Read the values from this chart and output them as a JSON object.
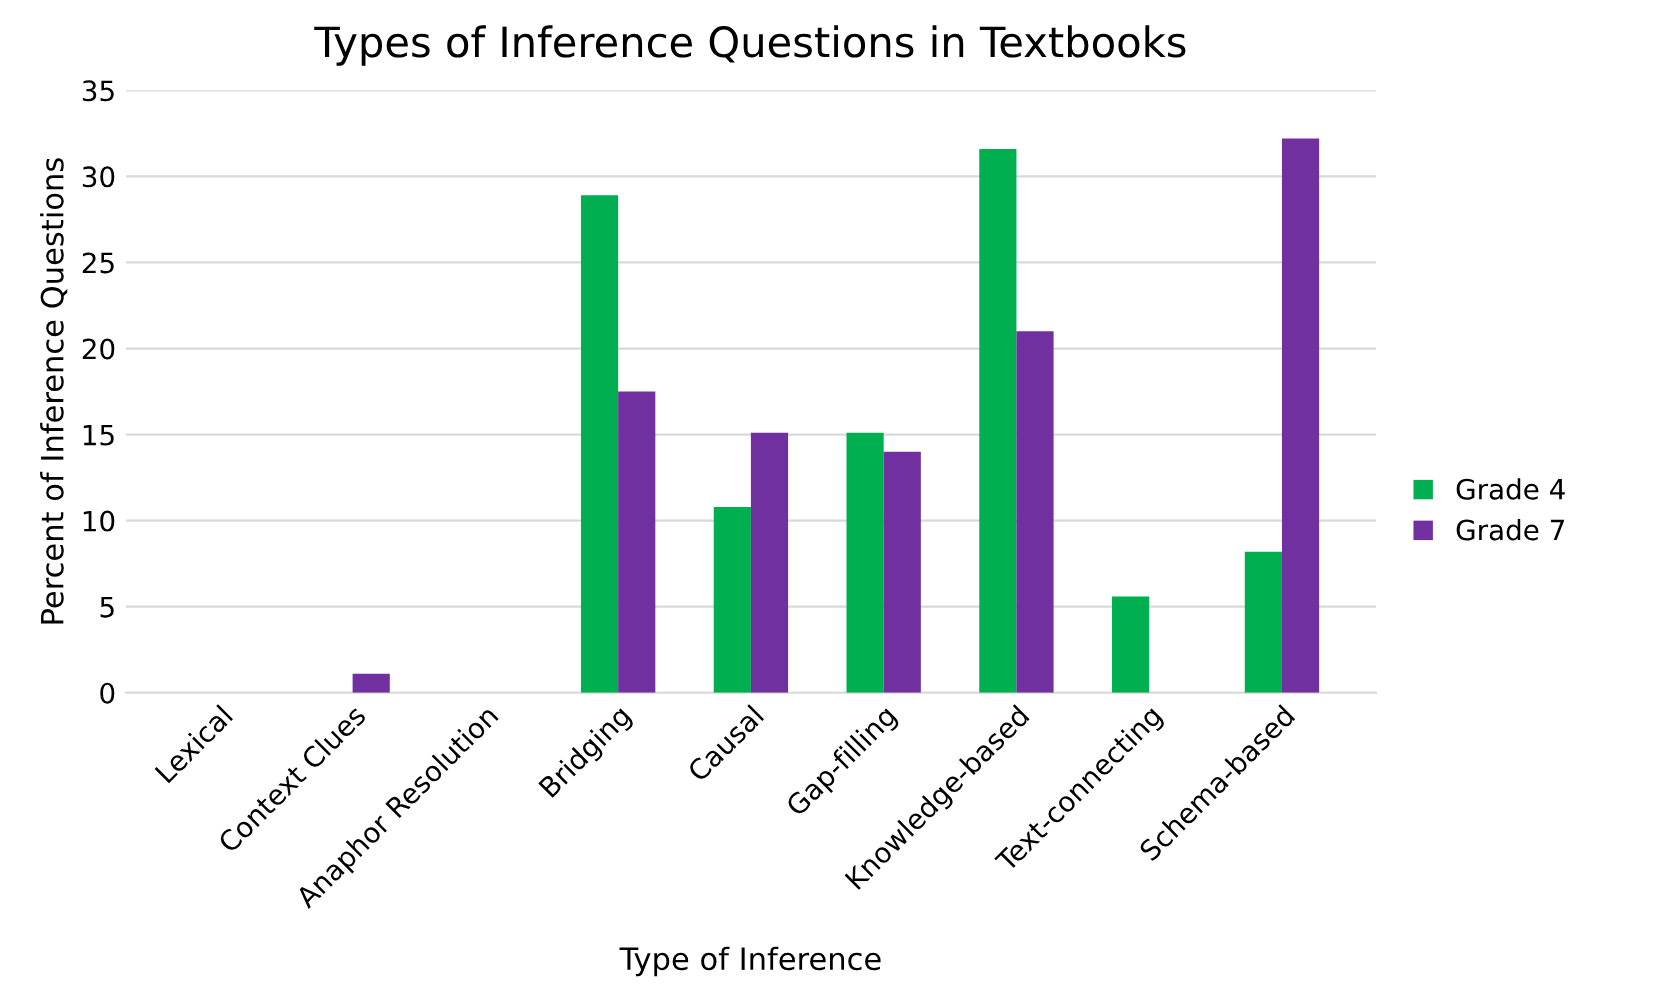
{
  "chart_data": {
    "type": "bar",
    "title": "Types of Inference Questions in Textbooks",
    "xlabel": "Type of Inference",
    "ylabel": "Percent of Inference Questions",
    "categories": [
      "Lexical",
      "Context Clues",
      "Anaphor Resolution",
      "Bridging",
      "Causal",
      "Gap-filling",
      "Knowledge-based",
      "Text-connecting",
      "Schema-based"
    ],
    "series": [
      {
        "name": "Grade 4",
        "color": "#00b050",
        "values": [
          0,
          0,
          0,
          28.9,
          10.8,
          15.1,
          31.6,
          5.6,
          8.2
        ]
      },
      {
        "name": "Grade 7",
        "color": "#7030a0",
        "values": [
          0,
          1.1,
          0,
          17.5,
          15.1,
          14.0,
          21.0,
          0,
          32.2
        ]
      }
    ],
    "ylim": [
      0,
      35
    ],
    "yticks": [
      0,
      5,
      10,
      15,
      20,
      25,
      30,
      35
    ],
    "grid": "y",
    "legend": "right"
  }
}
